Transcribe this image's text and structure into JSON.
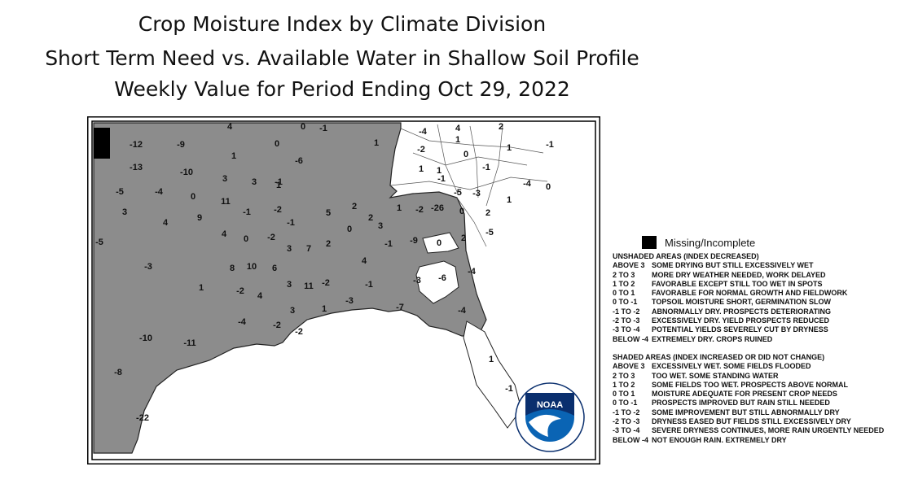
{
  "title": {
    "line1": "Crop Moisture Index by Climate Division",
    "line2": "Short Term Need vs. Available Water in Shallow Soil Profile",
    "line3": "Weekly Value for Period Ending Oct 29, 2022"
  },
  "map": {
    "labels": [
      "4",
      "0",
      "-1",
      "-4",
      "4",
      "2",
      "-12",
      "-9",
      "1",
      "-1",
      "0",
      "1",
      "1",
      "-2",
      "-6",
      "0",
      "1",
      "-13",
      "-10",
      "1",
      "1",
      "-1",
      "-1",
      "0",
      "3",
      "3",
      "-1",
      "1",
      "-4",
      "-5",
      "-4",
      "0",
      "11",
      "-5",
      "-3",
      "1",
      "3",
      "9",
      "-1",
      "-2",
      "5",
      "2",
      "-2",
      "-26",
      "0",
      "2",
      "4",
      "2",
      "1",
      "-1",
      "3",
      "0",
      "-5",
      "4",
      "0",
      "-2",
      "-1",
      "-9",
      "0",
      "2",
      "3",
      "7",
      "2",
      "-5",
      "4",
      "8",
      "10",
      "6",
      "-6",
      "-4",
      "-3",
      "-3",
      "1",
      "3",
      "11",
      "-2",
      "-1",
      "-2",
      "4",
      "-3",
      "-7",
      "-4",
      "3",
      "1",
      "-4",
      "-2",
      "-2",
      "-10",
      "-11",
      "1",
      "-8",
      "-1",
      "-22"
    ]
  },
  "legend": {
    "missing": "Missing/Incomplete",
    "unshaded_heading": "UNSHADED AREAS (INDEX DECREASED)",
    "unshaded": [
      {
        "range": "ABOVE 3",
        "text": "SOME DRYING BUT STILL EXCESSIVELY WET"
      },
      {
        "range": "2 TO 3",
        "text": "MORE DRY WEATHER NEEDED, WORK DELAYED"
      },
      {
        "range": "1 TO 2",
        "text": "FAVORABLE EXCEPT STILL TOO WET IN SPOTS"
      },
      {
        "range": "0 TO 1",
        "text": "FAVORABLE FOR NORMAL GROWTH AND FIELDWORK"
      },
      {
        "range": "0 TO -1",
        "text": "TOPSOIL MOISTURE SHORT, GERMINATION SLOW"
      },
      {
        "range": "-1 TO -2",
        "text": "ABNORMALLY DRY. PROSPECTS DETERIORATING"
      },
      {
        "range": "-2 TO -3",
        "text": "EXCESSIVELY DRY. YIELD PROSPECTS REDUCED"
      },
      {
        "range": "-3 TO -4",
        "text": "POTENTIAL YIELDS SEVERELY CUT BY DRYNESS"
      },
      {
        "range": "BELOW -4",
        "text": "EXTREMELY DRY. CROPS RUINED"
      }
    ],
    "shaded_heading": "SHADED AREAS (INDEX INCREASED OR DID NOT CHANGE)",
    "shaded": [
      {
        "range": "ABOVE 3",
        "text": "EXCESSIVELY WET. SOME FIELDS FLOODED"
      },
      {
        "range": "2 TO 3",
        "text": "TOO WET. SOME STANDING WATER"
      },
      {
        "range": "1 TO 2",
        "text": "SOME FIELDS TOO WET. PROSPECTS ABOVE NORMAL"
      },
      {
        "range": "0 TO 1",
        "text": "MOISTURE ADEQUATE FOR PRESENT CROP NEEDS"
      },
      {
        "range": "0 TO -1",
        "text": "PROSPECTS IMPROVED BUT RAIN STILL NEEDED"
      },
      {
        "range": "-1 TO -2",
        "text": "SOME IMPROVEMENT BUT STILL ABNORMALLY DRY"
      },
      {
        "range": "-2 TO -3",
        "text": "DRYNESS EASED BUT FIELDS STILL EXCESSIVELY DRY"
      },
      {
        "range": "-3 TO -4",
        "text": "SEVERE DRYNESS CONTINUES, MORE RAIN URGENTLY NEEDED"
      },
      {
        "range": "BELOW -4",
        "text": "NOT ENOUGH RAIN. EXTREMELY DRY"
      }
    ]
  },
  "logo": {
    "text": "NOAA",
    "ring_text_top": "NATIONAL OCEANIC AND ATMOSPHERIC ADMINISTRATION",
    "ring_text_bottom": "U.S. DEPARTMENT OF COMMERCE"
  },
  "colors": {
    "shaded": "#8c8c8c",
    "unshaded": "#ffffff",
    "missing": "#000000",
    "noaa_blue": "#0a64b4",
    "noaa_dark": "#0a2f6e"
  }
}
